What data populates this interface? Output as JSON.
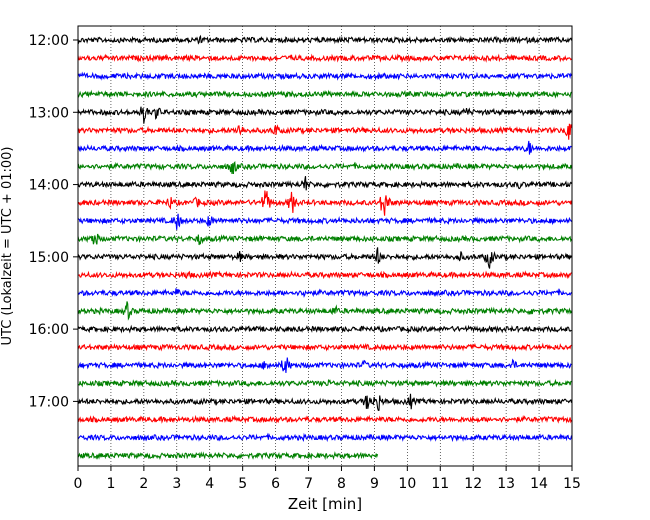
{
  "chart_data": {
    "type": "line",
    "title": "",
    "xlabel": "Zeit  [min]",
    "ylabel": "UTC (Lokalzeit = UTC + 01:00)",
    "xlim": [
      0,
      15
    ],
    "x_ticks": [
      0,
      1,
      2,
      3,
      4,
      5,
      6,
      7,
      8,
      9,
      10,
      11,
      12,
      13,
      14,
      15
    ],
    "grid": "vertical dotted",
    "legend": "none",
    "y_ticks": [
      "12:00",
      "13:00",
      "14:00",
      "15:00",
      "16:00",
      "17:00"
    ],
    "trace_colors": [
      "#000000",
      "#ff0000",
      "#0000ff",
      "#008000"
    ],
    "traces": [
      {
        "start": "12:00",
        "color": "#000000",
        "end_min": 15,
        "events": [
          [
            3.7,
            5
          ],
          [
            0.8,
            4
          ]
        ]
      },
      {
        "start": "12:15",
        "color": "#ff0000",
        "end_min": 15,
        "events": [
          [
            5.7,
            5
          ],
          [
            6.5,
            4
          ]
        ]
      },
      {
        "start": "12:30",
        "color": "#0000ff",
        "end_min": 15,
        "events": [
          [
            9.1,
            5
          ]
        ]
      },
      {
        "start": "12:45",
        "color": "#008000",
        "end_min": 15,
        "events": [
          [
            6.3,
            4
          ]
        ]
      },
      {
        "start": "13:00",
        "color": "#000000",
        "end_min": 15,
        "events": [
          [
            2.0,
            12
          ],
          [
            2.4,
            9
          ],
          [
            11.8,
            7
          ]
        ]
      },
      {
        "start": "13:15",
        "color": "#ff0000",
        "end_min": 15,
        "events": [
          [
            4.9,
            9
          ],
          [
            6.0,
            8
          ],
          [
            14.9,
            11
          ]
        ]
      },
      {
        "start": "13:30",
        "color": "#0000ff",
        "end_min": 15,
        "events": [
          [
            13.7,
            9
          ]
        ]
      },
      {
        "start": "13:45",
        "color": "#008000",
        "end_min": 15,
        "events": [
          [
            4.7,
            11
          ]
        ]
      },
      {
        "start": "14:00",
        "color": "#000000",
        "end_min": 15,
        "events": [
          [
            6.9,
            10
          ],
          [
            13.4,
            5
          ]
        ]
      },
      {
        "start": "14:15",
        "color": "#ff0000",
        "end_min": 15,
        "events": [
          [
            5.7,
            16
          ],
          [
            6.5,
            13
          ],
          [
            9.3,
            18
          ],
          [
            2.8,
            8
          ],
          [
            3.6,
            7
          ]
        ]
      },
      {
        "start": "14:30",
        "color": "#0000ff",
        "end_min": 15,
        "events": [
          [
            3.0,
            11
          ],
          [
            4.0,
            8
          ]
        ]
      },
      {
        "start": "14:45",
        "color": "#008000",
        "end_min": 15,
        "events": [
          [
            0.5,
            11
          ],
          [
            3.7,
            8
          ]
        ]
      },
      {
        "start": "15:00",
        "color": "#000000",
        "end_min": 15,
        "events": [
          [
            4.9,
            7
          ],
          [
            9.1,
            11
          ],
          [
            11.6,
            7
          ],
          [
            12.5,
            13
          ]
        ]
      },
      {
        "start": "15:15",
        "color": "#ff0000",
        "end_min": 15,
        "events": [
          [
            3.3,
            6
          ]
        ]
      },
      {
        "start": "15:30",
        "color": "#0000ff",
        "end_min": 15,
        "events": [
          [
            3.0,
            6
          ],
          [
            6.9,
            6
          ]
        ]
      },
      {
        "start": "15:45",
        "color": "#008000",
        "end_min": 15,
        "events": [
          [
            1.5,
            11
          ],
          [
            7.8,
            7
          ],
          [
            13.8,
            6
          ]
        ]
      },
      {
        "start": "16:00",
        "color": "#000000",
        "end_min": 15,
        "events": []
      },
      {
        "start": "16:15",
        "color": "#ff0000",
        "end_min": 15,
        "events": []
      },
      {
        "start": "16:30",
        "color": "#0000ff",
        "end_min": 15,
        "events": [
          [
            6.3,
            13
          ],
          [
            5.7,
            8
          ],
          [
            8.7,
            6
          ],
          [
            13.2,
            7
          ]
        ]
      },
      {
        "start": "16:45",
        "color": "#008000",
        "end_min": 15,
        "events": [
          [
            7.6,
            5
          ]
        ]
      },
      {
        "start": "17:00",
        "color": "#000000",
        "end_min": 15,
        "events": [
          [
            8.8,
            11
          ],
          [
            9.1,
            13
          ],
          [
            10.1,
            9
          ]
        ]
      },
      {
        "start": "17:15",
        "color": "#ff0000",
        "end_min": 15,
        "events": []
      },
      {
        "start": "17:30",
        "color": "#0000ff",
        "end_min": 15,
        "events": []
      },
      {
        "start": "17:45",
        "color": "#008000",
        "end_min": 9.1,
        "events": []
      }
    ]
  }
}
